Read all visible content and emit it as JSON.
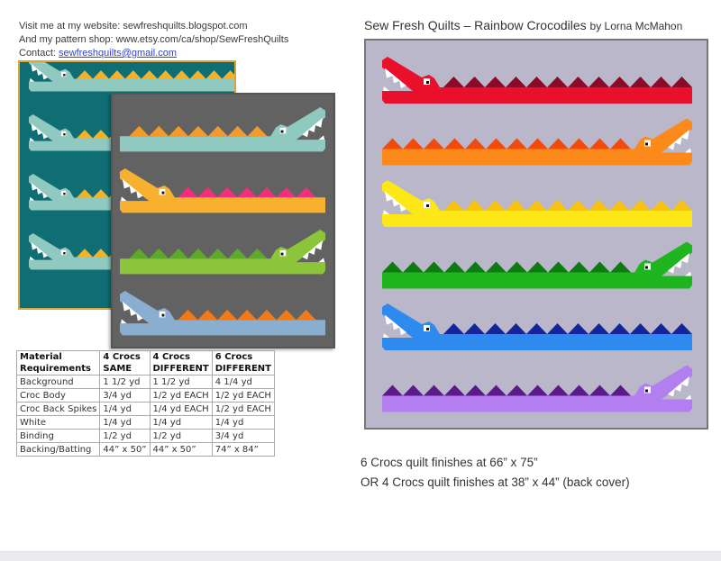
{
  "info": {
    "website": "Visit me at my website: sewfreshquilts.blogspot.com",
    "shop": "And my pattern shop: www.etsy.com/ca/shop/SewFreshQuilts",
    "contact_label": "Contact: ",
    "contact_email": "sewfreshquilts@gmail.com"
  },
  "title": {
    "main": "Sew Fresh Quilts – Rainbow Crocodiles",
    "by": "by Lorna McMahon"
  },
  "table": {
    "headers": [
      [
        "Material",
        "Requirements"
      ],
      [
        "4 Crocs",
        "SAME"
      ],
      [
        "4 Crocs",
        "DIFFERENT"
      ],
      [
        "6 Crocs",
        "DIFFERENT"
      ]
    ],
    "rows": [
      [
        "Background",
        "1  1/2 yd",
        "1  1/2 yd",
        "4  1/4 yd"
      ],
      [
        "Croc Body",
        "3/4 yd",
        "1/2 yd EACH",
        "1/2 yd EACH"
      ],
      [
        "Croc Back Spikes",
        "1/4 yd",
        "1/4 yd EACH",
        "1/2 yd EACH"
      ],
      [
        "White",
        "1/4 yd",
        "1/4 yd",
        "1/4 yd"
      ],
      [
        "Binding",
        "1/2 yd",
        "1/2 yd",
        "3/4 yd"
      ],
      [
        "Backing/Batting",
        "44” x 50”",
        "44” x 50”",
        "74” x 84”"
      ]
    ]
  },
  "finish": {
    "line1": "6 Crocs quilt finishes at 66” x 75”",
    "line2": "OR 4 Crocs quilt finishes at 38” x 44” (back cover)"
  },
  "quilts": {
    "rainbow": [
      {
        "body": "#e8102a",
        "spike": "#8a0a28",
        "dir": "left"
      },
      {
        "body": "#fb8a1a",
        "spike": "#f24a0c",
        "dir": "right"
      },
      {
        "body": "#fbe816",
        "spike": "#f8c20e",
        "dir": "left"
      },
      {
        "body": "#1fb51f",
        "spike": "#0e7a12",
        "dir": "right"
      },
      {
        "body": "#2f8af0",
        "spike": "#14249a",
        "dir": "left"
      },
      {
        "body": "#b27ef0",
        "spike": "#5a1a8a",
        "dir": "right"
      }
    ],
    "teal": [
      {
        "body": "#8fc9c0",
        "spike": "#f4b12a",
        "dir": "left"
      },
      {
        "body": "#8fc9c0",
        "spike": "#f4b12a",
        "dir": "left"
      },
      {
        "body": "#8fc9c0",
        "spike": "#f4b12a",
        "dir": "left"
      },
      {
        "body": "#8fc9c0",
        "spike": "#f4b12a",
        "dir": "left"
      }
    ],
    "gray": [
      {
        "body": "#8fc9c0",
        "spike": "#f49a2a",
        "dir": "right"
      },
      {
        "body": "#f8b030",
        "spike": "#f0307a",
        "dir": "left"
      },
      {
        "body": "#8cc43a",
        "spike": "#5ea82a",
        "dir": "right"
      },
      {
        "body": "#8aaed0",
        "spike": "#f07a1a",
        "dir": "left"
      }
    ]
  }
}
